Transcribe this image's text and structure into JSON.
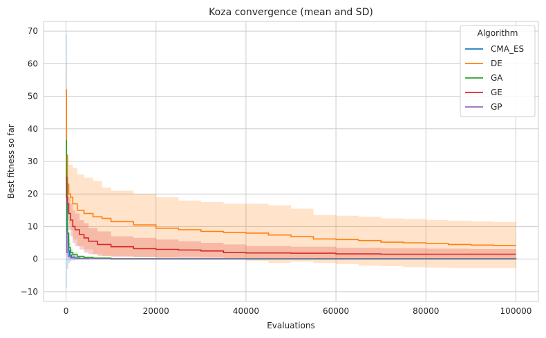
{
  "chart_data": {
    "type": "line",
    "title": "Koza convergence (mean and SD)",
    "xlabel": "Evaluations",
    "ylabel": "Best fitness so far",
    "xlim": [
      -5000,
      105000
    ],
    "ylim": [
      -13,
      73
    ],
    "xticks": [
      0,
      20000,
      40000,
      60000,
      80000,
      100000
    ],
    "xtick_labels": [
      "0",
      "20000",
      "40000",
      "60000",
      "80000",
      "100000"
    ],
    "yticks": [
      -10,
      0,
      10,
      20,
      30,
      40,
      50,
      60,
      70
    ],
    "ytick_labels": [
      "−10",
      "0",
      "10",
      "20",
      "30",
      "40",
      "50",
      "60",
      "70"
    ],
    "grid": true,
    "legend": {
      "title": "Algorithm",
      "placement": "top-right"
    },
    "series": [
      {
        "name": "CMA_ES",
        "color": "#1f77b4",
        "x": [
          0,
          200,
          500,
          800,
          1200,
          2000,
          3000,
          5000,
          10000,
          100000
        ],
        "mean": [
          30,
          8,
          2.5,
          1.2,
          0.6,
          0.3,
          0.15,
          0.1,
          0.05,
          0.0
        ],
        "lower": [
          -9,
          -3,
          -1.2,
          -0.7,
          -0.4,
          -0.2,
          -0.1,
          -0.05,
          0,
          0
        ],
        "upper": [
          69,
          19,
          6.2,
          3.1,
          1.6,
          0.8,
          0.4,
          0.25,
          0.1,
          0.05
        ]
      },
      {
        "name": "DE",
        "color": "#ff7f0e",
        "x": [
          0,
          100,
          300,
          600,
          1000,
          1500,
          2500,
          4000,
          6000,
          8000,
          10000,
          15000,
          20000,
          25000,
          30000,
          35000,
          40000,
          45000,
          50000,
          55000,
          60000,
          65000,
          70000,
          75000,
          80000,
          85000,
          90000,
          95000,
          100000
        ],
        "mean": [
          52,
          32,
          23,
          20,
          19,
          17,
          15,
          14,
          13,
          12.5,
          11.5,
          10.5,
          9.5,
          9.0,
          8.5,
          8.2,
          8.0,
          7.4,
          6.9,
          6.2,
          6.0,
          5.7,
          5.2,
          5.0,
          4.8,
          4.5,
          4.3,
          4.2,
          4.2
        ],
        "lower": [
          46,
          24,
          14,
          11,
          9,
          6,
          4,
          3,
          1.5,
          1.0,
          0.8,
          0.6,
          0.5,
          0.8,
          0.6,
          0.2,
          -0.5,
          -1.2,
          -0.8,
          -1.2,
          -1.5,
          -2.0,
          -2.2,
          -2.5,
          -2.6,
          -2.8,
          -2.8,
          -2.8,
          -2.8
        ],
        "upper": [
          58,
          40,
          32,
          29,
          29,
          28,
          26,
          25,
          24,
          22,
          21,
          20,
          19,
          18,
          17.5,
          17,
          17,
          16.5,
          15.5,
          13.5,
          13.3,
          13,
          12.5,
          12.3,
          12,
          11.8,
          11.6,
          11.4,
          11.2
        ]
      },
      {
        "name": "GA",
        "color": "#2ca02c",
        "x": [
          0,
          100,
          300,
          600,
          1000,
          1500,
          2500,
          4000,
          6000,
          10000,
          100000
        ],
        "mean": [
          36.5,
          25,
          8,
          3.5,
          2.0,
          1.4,
          0.8,
          0.5,
          0.3,
          0.15,
          0.05
        ],
        "lower": [
          35,
          22,
          5,
          2.0,
          1.0,
          0.7,
          0.4,
          0.2,
          0.1,
          0.05,
          0
        ],
        "upper": [
          38,
          28,
          11,
          5.0,
          3.0,
          2.1,
          1.2,
          0.8,
          0.5,
          0.25,
          0.1
        ]
      },
      {
        "name": "GE",
        "color": "#d62728",
        "x": [
          0,
          100,
          300,
          600,
          1000,
          1500,
          2000,
          3000,
          4000,
          5000,
          7000,
          10000,
          15000,
          20000,
          25000,
          30000,
          35000,
          40000,
          50000,
          60000,
          70000,
          80000,
          90000,
          100000
        ],
        "mean": [
          25.5,
          19,
          17,
          14,
          12,
          10,
          9,
          7.5,
          6.5,
          5.5,
          4.5,
          3.8,
          3.2,
          3.0,
          2.8,
          2.5,
          2.0,
          1.9,
          1.8,
          1.6,
          1.5,
          1.5,
          1.5,
          1.5
        ],
        "lower": [
          24,
          15,
          12,
          9,
          7,
          5,
          4,
          3,
          2,
          1.5,
          1.0,
          0.8,
          0.6,
          0.4,
          0.3,
          0.2,
          0.1,
          0.0,
          -0.1,
          -0.1,
          -0.1,
          -0.1,
          -0.1,
          -0.1
        ],
        "upper": [
          27,
          22,
          22,
          19,
          17,
          15,
          14,
          12,
          11,
          9.5,
          8.5,
          7,
          6.5,
          6,
          5.5,
          5,
          4.5,
          4,
          3.8,
          3.5,
          3.3,
          3.2,
          3.1,
          3.0
        ]
      },
      {
        "name": "GP",
        "color": "#9467bd",
        "x": [
          0,
          200,
          500,
          1000,
          2000,
          4000,
          10000,
          100000
        ],
        "mean": [
          8.5,
          2.0,
          0.8,
          0.4,
          0.2,
          0.1,
          0.05,
          0.0
        ],
        "lower": [
          7,
          1.0,
          0.3,
          0.1,
          0.05,
          0,
          0,
          0
        ],
        "upper": [
          10,
          3.0,
          1.3,
          0.7,
          0.35,
          0.2,
          0.1,
          0.05
        ]
      }
    ]
  }
}
